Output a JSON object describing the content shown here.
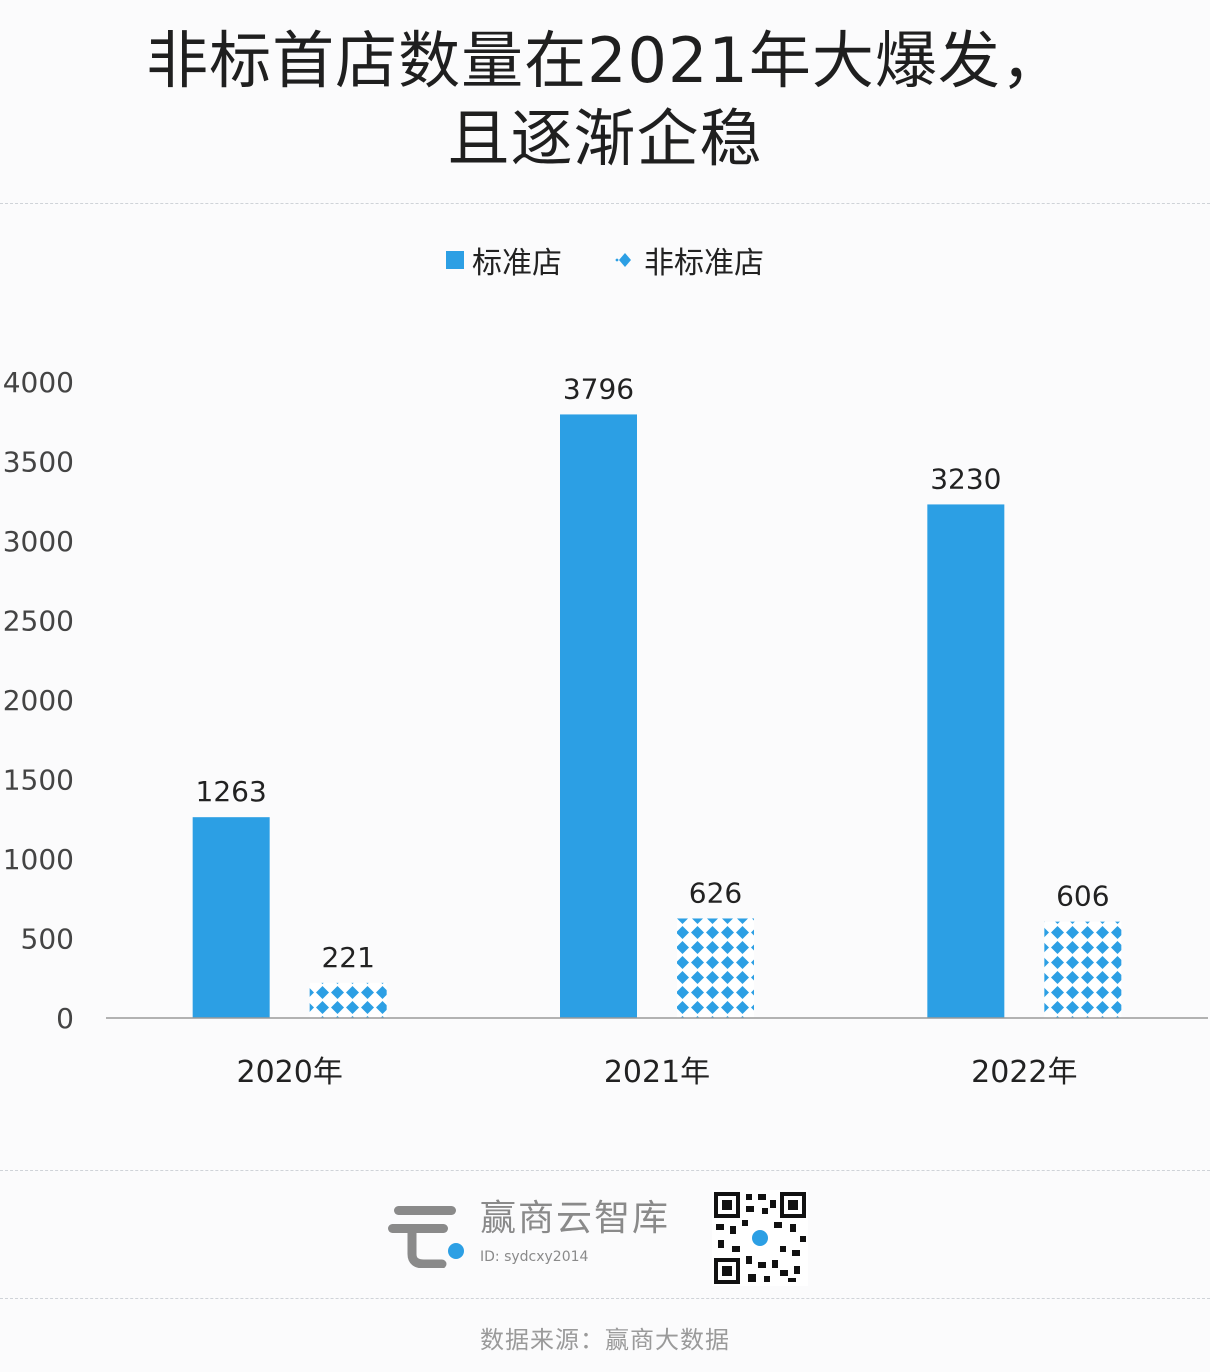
{
  "header": {
    "title_line1": "非标首店数量在2021年大爆发，",
    "title_line2": "且逐渐企稳"
  },
  "legend": {
    "standard": "标准店",
    "nonstandard": "非标准店"
  },
  "chart_data": {
    "type": "bar",
    "categories": [
      "2020年",
      "2021年",
      "2022年"
    ],
    "series": [
      {
        "name": "标准店",
        "values": [
          1263,
          3796,
          3230
        ],
        "color": "#2c9fe4",
        "style": "solid"
      },
      {
        "name": "非标准店",
        "values": [
          221,
          626,
          606
        ],
        "color": "#2c9fe4",
        "style": "diamond-pattern"
      }
    ],
    "yticks": [
      "0",
      "500",
      "1000",
      "1500",
      "2000",
      "2500",
      "3000",
      "3500",
      "4000"
    ],
    "ylim": [
      0,
      4000
    ],
    "grid": false,
    "legend_position": "top-center"
  },
  "footer": {
    "brand_name": "赢商云智库",
    "brand_id": "ID: sydcxy2014",
    "source": "数据来源：赢商大数据"
  },
  "colors": {
    "accent": "#2c9fe4",
    "logo_gray": "#8a8a8a"
  },
  "icons": {
    "logo": "yingshang-cloud-logo-icon",
    "qr": "qr-code-icon"
  }
}
